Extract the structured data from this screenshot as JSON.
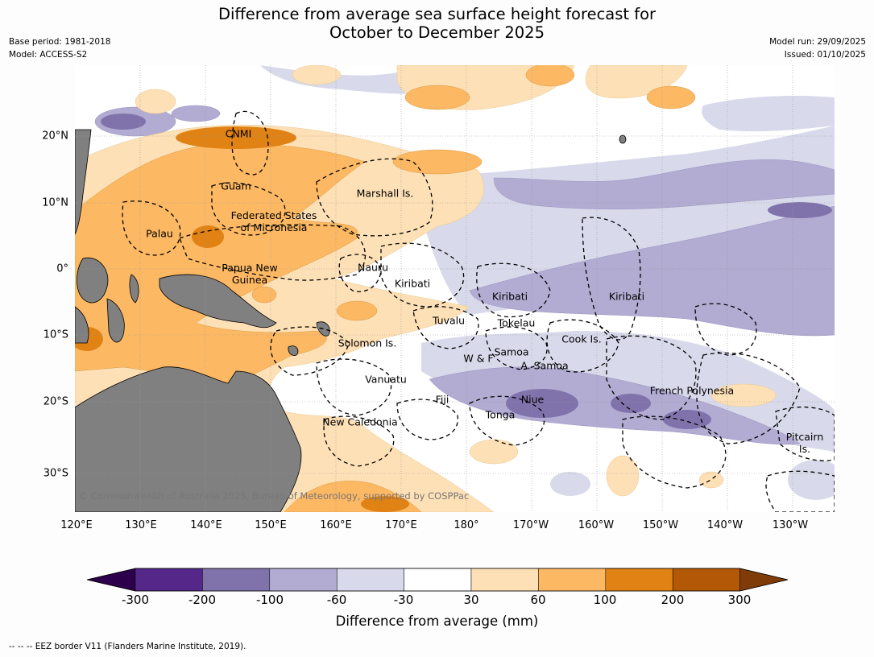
{
  "title": {
    "line1": "Difference from average sea surface height forecast for",
    "line2": "October to December 2025"
  },
  "meta_left": {
    "base_period": "Base period: 1981-2018",
    "model": "Model: ACCESS-S2"
  },
  "meta_right": {
    "model_run": "Model run: 29/09/2025",
    "issued": "Issued: 01/10/2025"
  },
  "map": {
    "longitude_labels": [
      "120°E",
      "130°E",
      "140°E",
      "150°E",
      "160°E",
      "170°E",
      "180°",
      "170°W",
      "160°W",
      "150°W",
      "140°W",
      "130°W"
    ],
    "latitude_labels": [
      "20°N",
      "10°N",
      "0°",
      "10°S",
      "20°S",
      "30°S"
    ],
    "place_labels": {
      "cnmi": "CNMI",
      "guam": "Guam",
      "marshall": "Marshall Is.",
      "palau": "Palau",
      "fsm": "Federated States\nof Micronesia",
      "png": "Papua New\nGuinea",
      "nauru": "Nauru",
      "kiribati_w": "Kiribati",
      "kiribati_c": "Kiribati",
      "kiribati_e": "Kiribati",
      "tuvalu": "Tuvalu",
      "tokelau": "Tokelau",
      "solomon": "Solomon Is.",
      "samoa": "Samoa",
      "wf": "W & F",
      "asamoa": "A. Samoa",
      "cook": "Cook Is.",
      "vanuatu": "Vanuatu",
      "fiji": "Fiji",
      "niue": "Niue",
      "tonga": "Tonga",
      "frpoly": "French Polynesia",
      "newcal": "New Caledonia",
      "pitcairn": "Pitcairn\nIs."
    },
    "copyright": "© Commonwealth of Australia 2025, Bureau of Meteorology, supported by COSPPac",
    "land_color": "#808080"
  },
  "colorbar": {
    "label": "Difference from average (mm)",
    "ticks": [
      "-300",
      "-200",
      "-100",
      "-60",
      "-30",
      "30",
      "60",
      "100",
      "200",
      "300"
    ],
    "colors": [
      "#2d004b",
      "#542788",
      "#8073ac",
      "#b2abd2",
      "#d8daeb",
      "#ffffff",
      "#fee0b6",
      "#fdb863",
      "#e08214",
      "#b35806",
      "#7f3b08"
    ]
  },
  "footnote": "--  --  -- EEZ border V11 (Flanders Marine Institute, 2019)."
}
